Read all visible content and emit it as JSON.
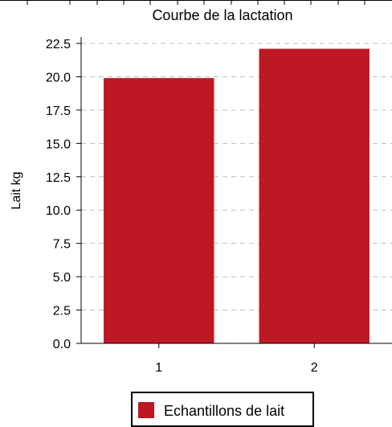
{
  "chart_data": {
    "type": "bar",
    "title": "Courbe de la lactation",
    "ylabel": "Lait kg",
    "xlabel": "",
    "categories": [
      "1",
      "2"
    ],
    "series": [
      {
        "name": "Echantillons de lait",
        "values": [
          19.9,
          22.1
        ],
        "color": "#be1824"
      }
    ],
    "ylim": [
      0,
      22.5
    ],
    "yticks": [
      "0.0",
      "2.5",
      "5.0",
      "7.5",
      "10.0",
      "12.5",
      "15.0",
      "17.5",
      "20.0",
      "22.5"
    ],
    "grid": true,
    "legend_position": "bottom"
  }
}
